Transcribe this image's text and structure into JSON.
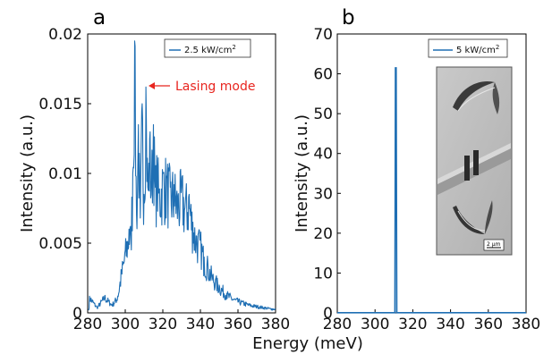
{
  "colors": {
    "series": "#1f6fb4",
    "annotation": "#e8251f"
  },
  "chart_data": [
    {
      "type": "line",
      "panel_label": "a",
      "xlabel": "Energy (meV)",
      "ylabel": "Intensity (a.u.)",
      "xlim": [
        280,
        380
      ],
      "ylim": [
        0,
        0.02
      ],
      "xticks": [
        "280",
        "300",
        "320",
        "340",
        "360",
        "380"
      ],
      "yticks": [
        "0",
        "0.005",
        "0.01",
        "0.015",
        "0.02"
      ],
      "legend_placement": "top-right",
      "series": [
        {
          "name": "2.5 kW/cm2",
          "x": [
            281,
            285,
            289,
            293,
            296,
            298,
            300,
            302,
            303,
            304,
            305,
            306,
            307,
            308,
            309,
            310,
            311,
            312,
            313,
            314,
            315,
            316,
            317,
            318,
            320,
            322,
            324,
            326,
            328,
            330,
            332,
            334,
            336,
            338,
            340,
            342,
            344,
            346,
            348,
            350,
            354,
            358,
            362,
            366,
            370,
            374,
            378,
            380
          ],
          "y": [
            0.0012,
            0.0004,
            0.0012,
            0.0006,
            0.0012,
            0.003,
            0.0045,
            0.006,
            0.0055,
            0.01,
            0.0195,
            0.007,
            0.0135,
            0.0068,
            0.015,
            0.0085,
            0.0162,
            0.009,
            0.0125,
            0.0095,
            0.0135,
            0.009,
            0.0105,
            0.0088,
            0.01,
            0.0098,
            0.009,
            0.0092,
            0.0083,
            0.009,
            0.008,
            0.0085,
            0.0065,
            0.0055,
            0.0052,
            0.004,
            0.0035,
            0.0028,
            0.0024,
            0.002,
            0.0014,
            0.001,
            0.0008,
            0.0006,
            0.0005,
            0.0004,
            0.0003,
            0.0003
          ]
        }
      ],
      "annotations": [
        {
          "text": "Lasing mode",
          "x": 311,
          "y": 0.0162
        }
      ]
    },
    {
      "type": "line",
      "panel_label": "b",
      "xlabel": "",
      "ylabel": "Intensity (a.u.)",
      "xlim": [
        280,
        380
      ],
      "ylim": [
        0,
        70
      ],
      "xticks": [
        "280",
        "300",
        "320",
        "340",
        "360",
        "380"
      ],
      "yticks": [
        "0",
        "10",
        "20",
        "30",
        "40",
        "50",
        "60",
        "70"
      ],
      "legend_placement": "top-right",
      "series": [
        {
          "name": "5 kW/cm2",
          "x": [
            280,
            310.5,
            310.8,
            311.0,
            311.2,
            311.5,
            380
          ],
          "y": [
            0.05,
            0.05,
            61.5,
            61.5,
            61.5,
            0.05,
            0.05
          ]
        }
      ],
      "inset": {
        "scale_bar_label": "2 µm"
      }
    }
  ],
  "legend": [
    {
      "text": "2.5 kW/cm",
      "superscript": "2"
    },
    {
      "text": "5 kW/cm",
      "superscript": "2"
    }
  ]
}
